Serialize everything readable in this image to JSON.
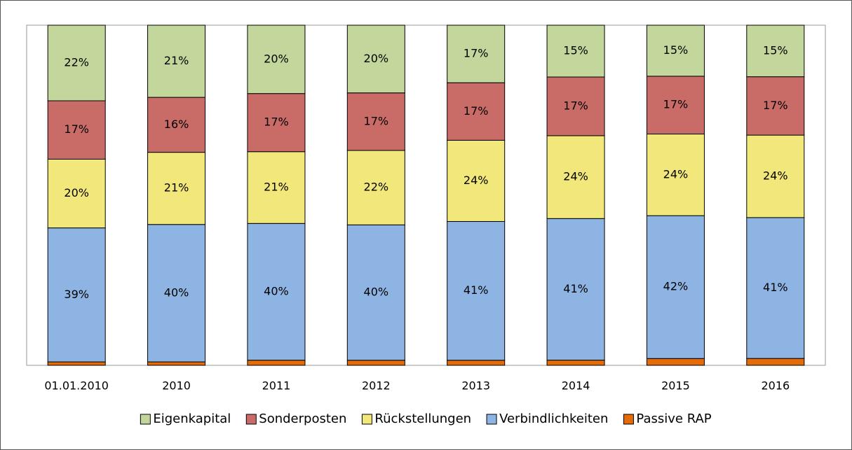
{
  "chart_data": {
    "type": "bar",
    "stacking": "percent",
    "categories": [
      "01.01.2010",
      "2010",
      "2011",
      "2012",
      "2013",
      "2014",
      "2015",
      "2016"
    ],
    "series": [
      {
        "name": "Eigenkapital",
        "color": "#c3d69b",
        "values": [
          22,
          21,
          20,
          20,
          17,
          15,
          15,
          15
        ],
        "value_labels": [
          "22%",
          "21%",
          "20%",
          "20%",
          "17%",
          "15%",
          "15%",
          "15%"
        ]
      },
      {
        "name": "Sonderposten",
        "color": "#c96b67",
        "values": [
          17,
          16,
          17,
          17,
          17,
          17,
          17,
          17
        ],
        "value_labels": [
          "17%",
          "16%",
          "17%",
          "17%",
          "17%",
          "17%",
          "17%",
          "17%"
        ]
      },
      {
        "name": "Rückstellungen",
        "color": "#f2e77a",
        "values": [
          20,
          21,
          21,
          22,
          24,
          24,
          24,
          24
        ],
        "value_labels": [
          "20%",
          "21%",
          "21%",
          "22%",
          "24%",
          "24%",
          "24%",
          "24%"
        ]
      },
      {
        "name": "Verbindlichkeiten",
        "color": "#8db4e2",
        "values": [
          39,
          40,
          40,
          40,
          41,
          41,
          42,
          41
        ],
        "value_labels": [
          "39%",
          "40%",
          "40%",
          "40%",
          "41%",
          "41%",
          "42%",
          "41%"
        ]
      },
      {
        "name": "Passive RAP",
        "color": "#e36c09",
        "values": [
          1,
          1,
          1.5,
          1.5,
          1.5,
          1.5,
          2,
          2
        ]
      }
    ],
    "legend": "bottom"
  }
}
